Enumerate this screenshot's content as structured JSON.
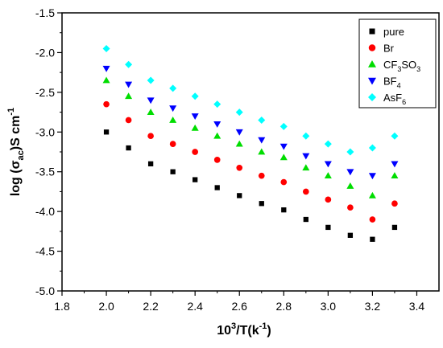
{
  "chart_data": {
    "type": "scatter",
    "title": "",
    "xlabel": {
      "main": "10",
      "sup": "3",
      "rest": "/T(k",
      "sup2": "-1",
      "end": ")"
    },
    "ylabel": {
      "pre": "log (σ",
      "sub": "ac",
      "post": ")S cm",
      "sup": "-1"
    },
    "xlim": [
      1.8,
      3.5
    ],
    "ylim": [
      -5.0,
      -1.5
    ],
    "xticks": [
      1.8,
      2.0,
      2.2,
      2.4,
      2.6,
      2.8,
      3.0,
      3.2,
      3.4
    ],
    "yticks": [
      -5.0,
      -4.5,
      -4.0,
      -3.5,
      -3.0,
      -2.5,
      -2.0,
      -1.5
    ],
    "x_tick_labels": [
      "1.8",
      "2.0",
      "2.2",
      "2.4",
      "2.6",
      "2.8",
      "3.0",
      "3.2",
      "3.4"
    ],
    "y_tick_labels": [
      "-5.0",
      "-4.5",
      "-4.0",
      "-3.5",
      "-3.0",
      "-2.5",
      "-2.0",
      "-1.5"
    ],
    "legend_position": "top-right",
    "x": [
      2.0,
      2.1,
      2.2,
      2.3,
      2.4,
      2.5,
      2.6,
      2.7,
      2.8,
      2.9,
      3.0,
      3.1,
      3.2,
      3.3
    ],
    "series": [
      {
        "name": "pure",
        "name_sub": "",
        "name_tail": "",
        "name_sub2": "",
        "marker": "square",
        "color": "#000000",
        "values": [
          -3.0,
          -3.2,
          -3.4,
          -3.5,
          -3.6,
          -3.7,
          -3.8,
          -3.9,
          -3.98,
          -4.1,
          -4.2,
          -4.3,
          -4.35,
          -4.2
        ]
      },
      {
        "name": "Br",
        "name_sub": "",
        "name_tail": "",
        "name_sub2": "",
        "marker": "circle",
        "color": "#ff0000",
        "values": [
          -2.65,
          -2.85,
          -3.05,
          -3.15,
          -3.25,
          -3.35,
          -3.45,
          -3.55,
          -3.63,
          -3.75,
          -3.85,
          -3.95,
          -4.1,
          -3.9
        ]
      },
      {
        "name": "CF",
        "name_sub": "3",
        "name_tail": "SO",
        "name_sub2": "3",
        "marker": "triangle-up",
        "color": "#00dd00",
        "values": [
          -2.35,
          -2.55,
          -2.75,
          -2.85,
          -2.95,
          -3.05,
          -3.15,
          -3.25,
          -3.32,
          -3.45,
          -3.55,
          -3.68,
          -3.8,
          -3.55
        ]
      },
      {
        "name": "BF",
        "name_sub": "4",
        "name_tail": "",
        "name_sub2": "",
        "marker": "triangle-down",
        "color": "#0000ff",
        "values": [
          -2.2,
          -2.4,
          -2.6,
          -2.7,
          -2.8,
          -2.9,
          -3.0,
          -3.1,
          -3.18,
          -3.3,
          -3.4,
          -3.5,
          -3.55,
          -3.4
        ]
      },
      {
        "name": "AsF",
        "name_sub": "6",
        "name_tail": "",
        "name_sub2": "",
        "marker": "diamond",
        "color": "#00ffff",
        "values": [
          -1.95,
          -2.15,
          -2.35,
          -2.45,
          -2.55,
          -2.65,
          -2.75,
          -2.85,
          -2.93,
          -3.05,
          -3.15,
          -3.25,
          -3.2,
          -3.05
        ]
      }
    ]
  }
}
